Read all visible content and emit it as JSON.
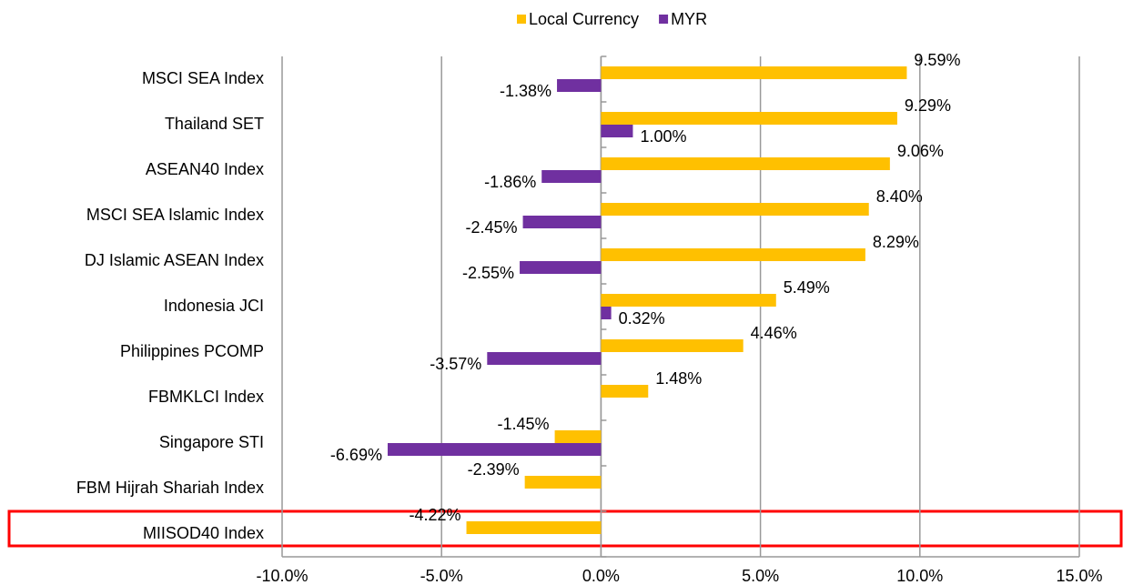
{
  "chart_data": {
    "type": "hbar",
    "categories": [
      "MSCI SEA Index",
      "Thailand SET",
      "ASEAN40 Index",
      "MSCI SEA Islamic Index",
      "DJ Islamic ASEAN Index",
      "Indonesia JCI",
      "Philippines PCOMP",
      "FBMKLCI Index",
      "Singapore STI",
      "FBM Hijrah Shariah Index",
      "MIISOD40 Index"
    ],
    "series": [
      {
        "name": "Local Currency",
        "color": "#ffc000",
        "values": [
          9.59,
          9.29,
          9.06,
          8.4,
          8.29,
          5.49,
          4.46,
          1.48,
          -1.45,
          -2.39,
          -4.22
        ],
        "value_labels": [
          "9.59%",
          "9.29%",
          "9.06%",
          "8.40%",
          "8.29%",
          "5.49%",
          "4.46%",
          "1.48%",
          "-1.45%",
          "-2.39%",
          "-4.22%"
        ]
      },
      {
        "name": "MYR",
        "color": "#7030a0",
        "values": [
          -1.38,
          1.0,
          -1.86,
          -2.45,
          -2.55,
          0.32,
          -3.57,
          null,
          -6.69,
          null,
          null
        ],
        "value_labels": [
          "-1.38%",
          "1.00%",
          "-1.86%",
          "-2.45%",
          "-2.55%",
          "0.32%",
          "-3.57%",
          null,
          "-6.69%",
          null,
          null
        ]
      }
    ],
    "xlim": [
      -10,
      15
    ],
    "xticks": [
      {
        "value": -10,
        "label": "-10.0%"
      },
      {
        "value": -5,
        "label": "-5.0%"
      },
      {
        "value": 0,
        "label": "0.0%"
      },
      {
        "value": 5,
        "label": "5.0%"
      },
      {
        "value": 10,
        "label": "10.0%"
      },
      {
        "value": 15,
        "label": "15.0%"
      }
    ],
    "grid": true,
    "legend": "top"
  }
}
